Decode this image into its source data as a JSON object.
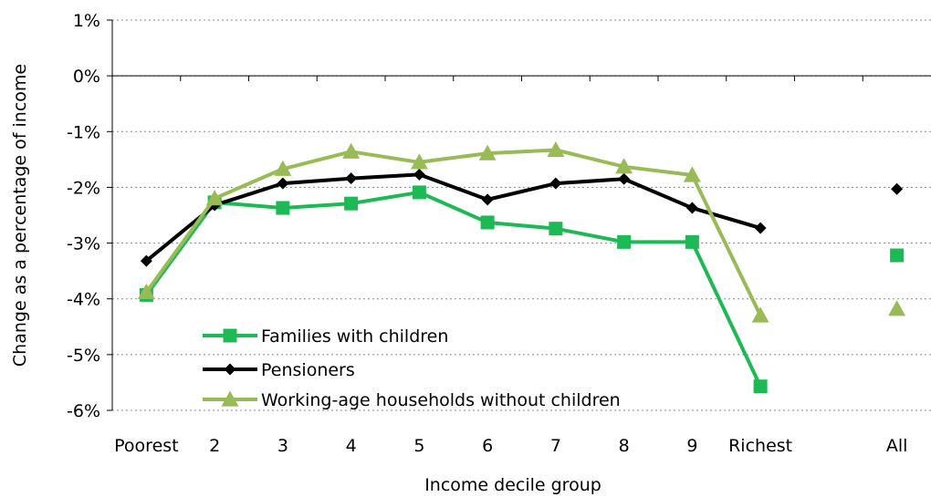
{
  "chart_data": {
    "type": "line",
    "xlabel": "Income decile group",
    "ylabel": "Change as a percentage of income",
    "categories": [
      "Poorest",
      "2",
      "3",
      "4",
      "5",
      "6",
      "7",
      "8",
      "9",
      "Richest",
      "",
      "All"
    ],
    "ylim": [
      -6,
      1
    ],
    "yticks": [
      1,
      0,
      -1,
      -2,
      -3,
      -4,
      -5,
      -6
    ],
    "ytick_labels": [
      "1%",
      "0%",
      "-1%",
      "-2%",
      "-3%",
      "-4%",
      "-5%",
      "-6%"
    ],
    "grid": "horizontal dotted",
    "legend_position": "bottom-left inside plot",
    "series": [
      {
        "name": "Families with children",
        "color": "#1db954",
        "marker": "square",
        "values": [
          -3.93,
          -2.27,
          -2.37,
          -2.29,
          -2.09,
          -2.63,
          -2.74,
          -2.98,
          -2.98,
          -5.57,
          null,
          -3.22
        ]
      },
      {
        "name": "Pensioners",
        "color": "#000000",
        "marker": "diamond",
        "values": [
          -3.32,
          -2.32,
          -1.93,
          -1.84,
          -1.77,
          -2.22,
          -1.93,
          -1.85,
          -2.37,
          -2.73,
          null,
          -2.03
        ]
      },
      {
        "name": "Working-age households without children",
        "color": "#99bb55",
        "marker": "triangle",
        "values": [
          -3.88,
          -2.2,
          -1.67,
          -1.36,
          -1.55,
          -1.39,
          -1.33,
          -1.63,
          -1.78,
          -4.3,
          null,
          -4.18
        ]
      }
    ]
  }
}
